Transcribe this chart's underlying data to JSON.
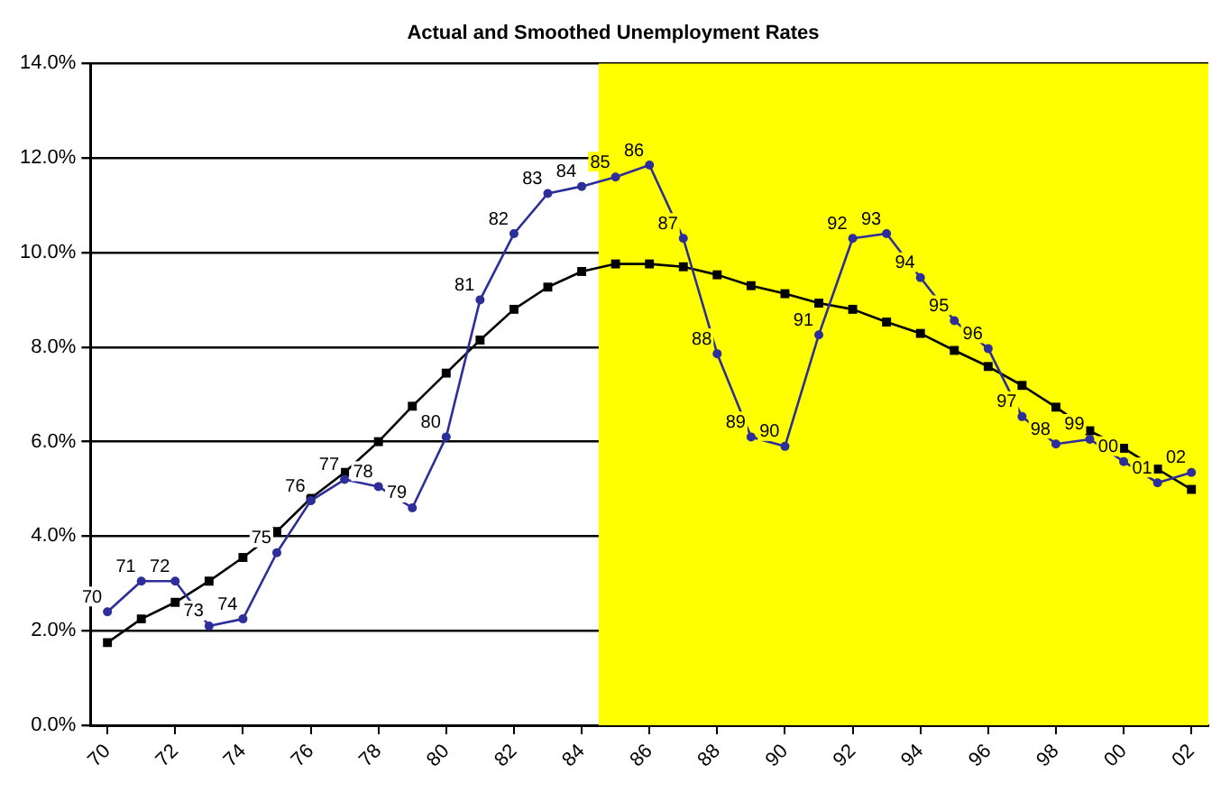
{
  "chart_data": {
    "type": "line",
    "title": "Actual and Smoothed Unemployment Rates",
    "x": [
      1970,
      1971,
      1972,
      1973,
      1974,
      1975,
      1976,
      1977,
      1978,
      1979,
      1980,
      1981,
      1982,
      1983,
      1984,
      1985,
      1986,
      1987,
      1988,
      1989,
      1990,
      1991,
      1992,
      1993,
      1994,
      1995,
      1996,
      1997,
      1998,
      1999,
      2000,
      2001,
      2002
    ],
    "xlim": [
      1969.5,
      2002.5
    ],
    "xticks": [
      {
        "value": 1970,
        "label": "70"
      },
      {
        "value": 1972,
        "label": "72"
      },
      {
        "value": 1974,
        "label": "74"
      },
      {
        "value": 1976,
        "label": "76"
      },
      {
        "value": 1978,
        "label": "78"
      },
      {
        "value": 1980,
        "label": "80"
      },
      {
        "value": 1982,
        "label": "82"
      },
      {
        "value": 1984,
        "label": "84"
      },
      {
        "value": 1986,
        "label": "86"
      },
      {
        "value": 1988,
        "label": "88"
      },
      {
        "value": 1990,
        "label": "90"
      },
      {
        "value": 1992,
        "label": "92"
      },
      {
        "value": 1994,
        "label": "94"
      },
      {
        "value": 1996,
        "label": "96"
      },
      {
        "value": 1998,
        "label": "98"
      },
      {
        "value": 2000,
        "label": "00"
      },
      {
        "value": 2002,
        "label": "02"
      }
    ],
    "ylim": [
      0,
      14
    ],
    "yticks": [
      {
        "value": 0,
        "label": "0.0%"
      },
      {
        "value": 2,
        "label": "2.0%"
      },
      {
        "value": 4,
        "label": "4.0%"
      },
      {
        "value": 6,
        "label": "6.0%"
      },
      {
        "value": 8,
        "label": "8.0%"
      },
      {
        "value": 10,
        "label": "10.0%"
      },
      {
        "value": 12,
        "label": "12.0%"
      },
      {
        "value": 14,
        "label": "14.0%"
      }
    ],
    "grid": "y",
    "legend": false,
    "line_style": "solid",
    "bands": [
      {
        "axis": "x",
        "from": 1984.5,
        "to": 2002.5,
        "color": "#ffff00"
      }
    ],
    "series": [
      {
        "color": "#000000",
        "marker": "square",
        "values": [
          1.75,
          2.25,
          2.6,
          3.05,
          3.55,
          4.1,
          4.8,
          5.35,
          6.0,
          6.75,
          7.45,
          8.15,
          8.8,
          9.27,
          9.6,
          9.76,
          9.76,
          9.7,
          9.53,
          9.3,
          9.13,
          8.93,
          8.8,
          8.53,
          8.29,
          7.93,
          7.59,
          7.19,
          6.73,
          6.23,
          5.86,
          5.42,
          4.99
        ]
      },
      {
        "color": "#2e2e9a",
        "marker": "circle",
        "values": [
          2.4,
          3.05,
          3.05,
          2.1,
          2.25,
          3.65,
          4.75,
          5.2,
          5.05,
          4.6,
          6.1,
          9.0,
          10.4,
          11.25,
          11.4,
          11.6,
          11.85,
          10.3,
          7.86,
          6.1,
          5.9,
          8.26,
          10.3,
          10.4,
          9.47,
          8.56,
          7.97,
          6.53,
          5.95,
          6.05,
          5.58,
          5.13,
          5.35
        ]
      }
    ],
    "annotations": [
      {
        "text": "70",
        "x": 1970,
        "y": 2.4
      },
      {
        "text": "71",
        "x": 1971,
        "y": 3.05
      },
      {
        "text": "72",
        "x": 1972,
        "y": 3.05
      },
      {
        "text": "73",
        "x": 1973,
        "y": 2.1
      },
      {
        "text": "74",
        "x": 1974,
        "y": 2.25
      },
      {
        "text": "75",
        "x": 1975,
        "y": 3.65
      },
      {
        "text": "76",
        "x": 1976,
        "y": 4.75
      },
      {
        "text": "77",
        "x": 1977,
        "y": 5.2
      },
      {
        "text": "78",
        "x": 1978,
        "y": 5.05
      },
      {
        "text": "79",
        "x": 1979,
        "y": 4.6
      },
      {
        "text": "80",
        "x": 1980,
        "y": 6.1
      },
      {
        "text": "81",
        "x": 1981,
        "y": 9.0
      },
      {
        "text": "82",
        "x": 1982,
        "y": 10.4
      },
      {
        "text": "83",
        "x": 1983,
        "y": 11.25
      },
      {
        "text": "84",
        "x": 1984,
        "y": 11.4
      },
      {
        "text": "85",
        "x": 1985,
        "y": 11.6
      },
      {
        "text": "86",
        "x": 1986,
        "y": 11.85
      },
      {
        "text": "87",
        "x": 1987,
        "y": 10.3
      },
      {
        "text": "88",
        "x": 1988,
        "y": 7.86
      },
      {
        "text": "89",
        "x": 1989,
        "y": 6.1
      },
      {
        "text": "90",
        "x": 1990,
        "y": 5.9
      },
      {
        "text": "91",
        "x": 1991,
        "y": 8.26
      },
      {
        "text": "92",
        "x": 1992,
        "y": 10.3
      },
      {
        "text": "93",
        "x": 1993,
        "y": 10.4
      },
      {
        "text": "94",
        "x": 1994,
        "y": 9.47
      },
      {
        "text": "95",
        "x": 1995,
        "y": 8.56
      },
      {
        "text": "96",
        "x": 1996,
        "y": 7.97
      },
      {
        "text": "97",
        "x": 1997,
        "y": 6.53
      },
      {
        "text": "98",
        "x": 1998,
        "y": 5.95
      },
      {
        "text": "99",
        "x": 1999,
        "y": 6.05
      },
      {
        "text": "00",
        "x": 2000,
        "y": 5.58
      },
      {
        "text": "01",
        "x": 2001,
        "y": 5.13
      },
      {
        "text": "02",
        "x": 2002,
        "y": 5.35
      }
    ]
  }
}
